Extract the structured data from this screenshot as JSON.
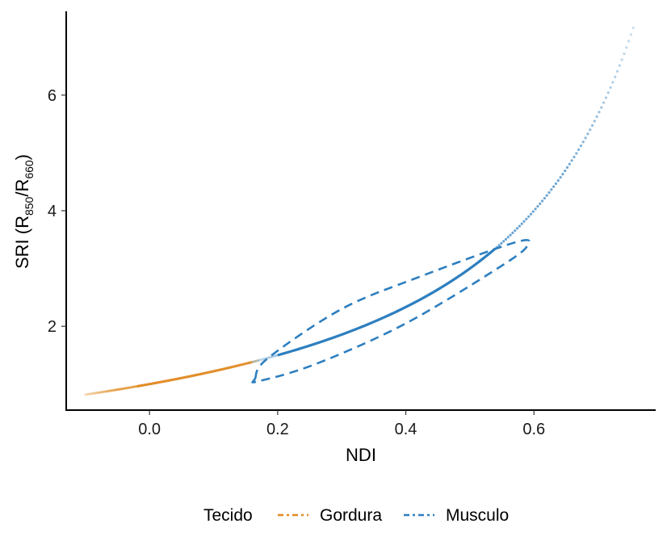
{
  "chart_data": {
    "type": "scatter",
    "xlabel": "NDI",
    "ylabel": {
      "prefix": "SRI (R",
      "sub1": "850",
      "slash": "/R",
      "sub2": "660",
      "suffix": ")"
    },
    "xlim": [
      -0.13,
      0.79
    ],
    "ylim": [
      0.55,
      7.45
    ],
    "x_ticks": [
      0.0,
      0.2,
      0.4,
      0.6
    ],
    "x_tick_labels": [
      "0.0",
      "0.2",
      "0.4",
      "0.6"
    ],
    "y_ticks": [
      2,
      4,
      6
    ],
    "y_tick_labels": [
      "2",
      "4",
      "6"
    ],
    "grid": false,
    "legend": {
      "title": "Tecido",
      "position": "bottom",
      "entries": [
        "Gordura",
        "Musculo"
      ]
    },
    "colors": {
      "Gordura": "#e08b22",
      "Musculo": "#2e7fbf"
    },
    "relationship": "SRI = (1 + NDI) / (1 - NDI)",
    "series": [
      {
        "name": "Gordura",
        "type": "scatter",
        "x_range": [
          -0.1,
          0.17
        ],
        "n_points": 110
      },
      {
        "name": "Musculo",
        "type": "scatter",
        "x_range": [
          0.155,
          0.755
        ],
        "n_points": 170
      }
    ],
    "fit_line": {
      "series": "Musculo",
      "style": "solid",
      "x_range": [
        0.2,
        0.54
      ]
    },
    "ellipses": [
      {
        "series": "Musculo",
        "style": "dashed",
        "points": [
          [
            0.165,
            1.1
          ],
          [
            0.185,
            1.45
          ],
          [
            0.3,
            2.3
          ],
          [
            0.42,
            2.85
          ],
          [
            0.57,
            3.45
          ],
          [
            0.59,
            3.4
          ],
          [
            0.55,
            3.05
          ],
          [
            0.4,
            2.05
          ],
          [
            0.26,
            1.35
          ],
          [
            0.17,
            1.05
          ]
        ]
      }
    ]
  }
}
